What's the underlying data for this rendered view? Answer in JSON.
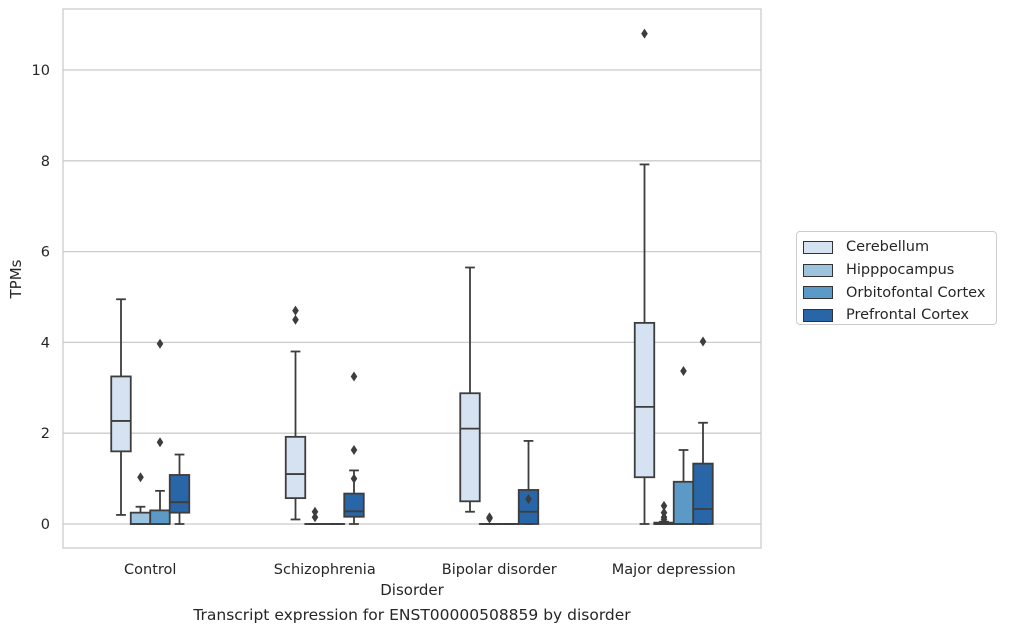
{
  "caption": "Transcript expression for ENST00000508859 by disorder",
  "chart_data": {
    "type": "box",
    "title": "",
    "xlabel": "Disorder",
    "ylabel": "TPMs",
    "ylim": [
      -0.5,
      11.35
    ],
    "yticks": [
      0,
      2,
      4,
      6,
      8,
      10
    ],
    "grid": "horizontal",
    "legend_position": "right",
    "categories": [
      "Control",
      "Schizophrenia",
      "Bipolar disorder",
      "Major depression"
    ],
    "series": [
      {
        "name": "Cerebellum",
        "color": "#d4e2f1"
      },
      {
        "name": "Hipppocampus",
        "color": "#9cc4df"
      },
      {
        "name": "Orbitofontal Cortex",
        "color": "#5b9ac6"
      },
      {
        "name": "Prefrontal Cortex",
        "color": "#2866a7"
      }
    ],
    "boxes": [
      [
        {
          "whisker_low": 0.2,
          "q1": 1.6,
          "median": 2.27,
          "q3": 3.25,
          "whisker_high": 4.95,
          "outliers": []
        },
        {
          "whisker_low": 0.0,
          "q1": 0.0,
          "median": 0.0,
          "q3": 0.25,
          "whisker_high": 0.38,
          "outliers": [
            1.03
          ]
        },
        {
          "whisker_low": 0.0,
          "q1": 0.0,
          "median": 0.0,
          "q3": 0.3,
          "whisker_high": 0.73,
          "outliers": [
            1.8,
            3.97
          ]
        },
        {
          "whisker_low": 0.0,
          "q1": 0.25,
          "median": 0.48,
          "q3": 1.08,
          "whisker_high": 1.53,
          "outliers": []
        }
      ],
      [
        {
          "whisker_low": 0.1,
          "q1": 0.57,
          "median": 1.1,
          "q3": 1.92,
          "whisker_high": 3.8,
          "outliers": [
            4.5,
            4.7
          ]
        },
        {
          "whisker_low": 0.0,
          "q1": 0.0,
          "median": 0.0,
          "q3": 0.0,
          "whisker_high": 0.0,
          "outliers": [
            0.15,
            0.27
          ]
        },
        {
          "whisker_low": 0.0,
          "q1": 0.0,
          "median": 0.0,
          "q3": 0.0,
          "whisker_high": 0.0,
          "outliers": []
        },
        {
          "whisker_low": 0.0,
          "q1": 0.16,
          "median": 0.28,
          "q3": 0.67,
          "whisker_high": 1.18,
          "outliers": [
            1.0,
            1.63,
            3.25
          ]
        }
      ],
      [
        {
          "whisker_low": 0.27,
          "q1": 0.5,
          "median": 2.1,
          "q3": 2.88,
          "whisker_high": 5.65,
          "outliers": []
        },
        {
          "whisker_low": 0.0,
          "q1": 0.0,
          "median": 0.0,
          "q3": 0.0,
          "whisker_high": 0.0,
          "outliers": [
            0.12,
            0.15
          ]
        },
        {
          "whisker_low": 0.0,
          "q1": 0.0,
          "median": 0.0,
          "q3": 0.0,
          "whisker_high": 0.0,
          "outliers": []
        },
        {
          "whisker_low": 0.0,
          "q1": 0.0,
          "median": 0.27,
          "q3": 0.75,
          "whisker_high": 1.83,
          "outliers": [
            0.55
          ]
        }
      ],
      [
        {
          "whisker_low": 0.0,
          "q1": 1.03,
          "median": 2.58,
          "q3": 4.43,
          "whisker_high": 7.92,
          "outliers": [
            10.8
          ]
        },
        {
          "whisker_low": 0.0,
          "q1": 0.0,
          "median": 0.0,
          "q3": 0.03,
          "whisker_high": 0.05,
          "outliers": [
            0.1,
            0.15,
            0.25,
            0.4
          ]
        },
        {
          "whisker_low": 0.0,
          "q1": 0.0,
          "median": 0.0,
          "q3": 0.93,
          "whisker_high": 1.63,
          "outliers": [
            3.37
          ]
        },
        {
          "whisker_low": 0.0,
          "q1": 0.0,
          "median": 0.33,
          "q3": 1.33,
          "whisker_high": 2.23,
          "outliers": [
            4.02
          ]
        }
      ]
    ]
  }
}
